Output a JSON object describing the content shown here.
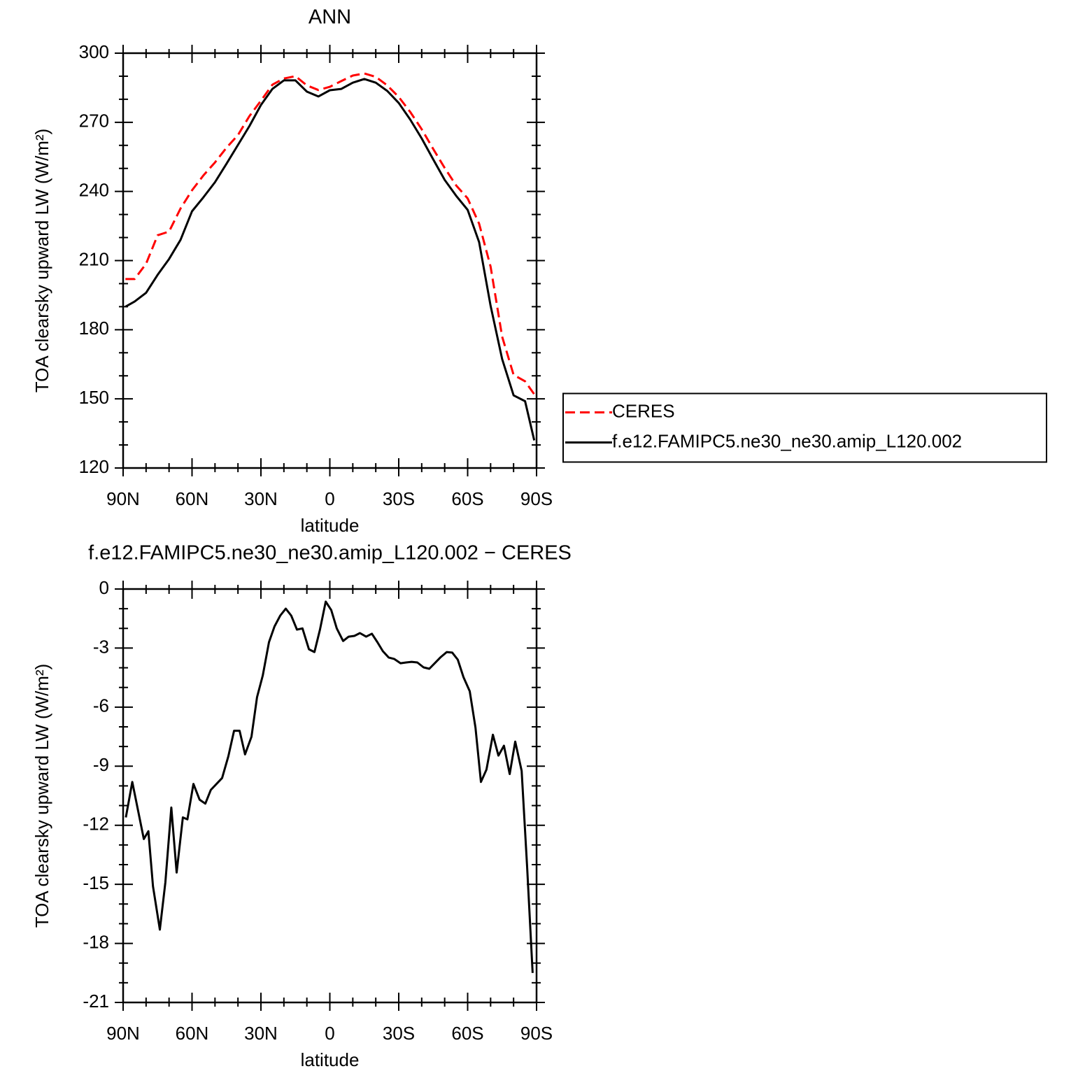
{
  "chart_data": [
    {
      "type": "line",
      "title": "ANN",
      "xlabel": "latitude",
      "ylabel": "TOA clearsky upward LW (W/m²)",
      "x": [
        89,
        85,
        80,
        75,
        70,
        65,
        60,
        55,
        50,
        45,
        40,
        35,
        30,
        25,
        20,
        15,
        10,
        5,
        0,
        -5,
        -10,
        -15,
        -20,
        -25,
        -30,
        -35,
        -40,
        -45,
        -50,
        -55,
        -60,
        -65,
        -70,
        -75,
        -80,
        -85,
        -89
      ],
      "series": [
        {
          "name": "CERES",
          "color": "#ff0000",
          "line_style": "dashed",
          "values": [
            202,
            202,
            208.6,
            221,
            222.6,
            232.6,
            240.5,
            247,
            252.6,
            259,
            264.5,
            272.7,
            279.4,
            286.3,
            289,
            290,
            286,
            284,
            285.4,
            287.9,
            290.3,
            291.2,
            289.7,
            286,
            281,
            274.5,
            267,
            258.4,
            250.2,
            242.6,
            237,
            226,
            207.4,
            177,
            160.4,
            157.6,
            152
          ]
        },
        {
          "name": "f.e12.FAMIPC5.ne30_ne30.amip_L120.002",
          "color": "#000000",
          "line_style": "solid",
          "values": [
            190,
            192.2,
            196,
            203.8,
            210.7,
            219,
            231.4,
            237.5,
            244,
            252,
            260.2,
            268.4,
            277.5,
            284.5,
            288.2,
            288.2,
            283.3,
            281.2,
            283.9,
            284.5,
            287.2,
            288.8,
            287.2,
            283.6,
            278.4,
            271.2,
            263,
            253.9,
            245,
            238.1,
            232,
            218,
            190.4,
            167.3,
            151.5,
            149,
            132
          ]
        }
      ],
      "xlim": [
        90,
        -90
      ],
      "xticks": [
        {
          "value": 90,
          "label": "90N"
        },
        {
          "value": 60,
          "label": "60N"
        },
        {
          "value": 30,
          "label": "30N"
        },
        0,
        {
          "value": -30,
          "label": "30S"
        },
        {
          "value": -60,
          "label": "60S"
        },
        {
          "value": -90,
          "label": "90S"
        }
      ],
      "xminorticks": [
        80,
        70,
        50,
        40,
        20,
        10,
        -10,
        -20,
        -40,
        -50,
        -70,
        -80
      ],
      "ylim": [
        120,
        300
      ],
      "yticks": [
        120,
        150,
        180,
        210,
        240,
        270,
        300
      ],
      "yminorticks": [
        130,
        140,
        160,
        170,
        190,
        200,
        220,
        230,
        250,
        260,
        280,
        290
      ],
      "legend": "right"
    },
    {
      "type": "line",
      "title": "f.e12.FAMIPC5.ne30_ne30.amip_L120.002 − CERES",
      "xlabel": "latitude",
      "ylabel": "TOA clearsky upward LW (W/m²)",
      "x": [
        88.8,
        86,
        81,
        79,
        77,
        74,
        71.6,
        69,
        66.7,
        64,
        62,
        59.4,
        56.7,
        54.2,
        51.8,
        46.9,
        44.2,
        41.7,
        39.3,
        36.9,
        34.1,
        31.7,
        29.2,
        26.5,
        24.1,
        21.6,
        19.2,
        16.8,
        14.3,
        11.9,
        9.1,
        6.7,
        4.3,
        1.8,
        -0.6,
        -3,
        -5.8,
        -8.2,
        -10.7,
        -13.1,
        -15.8,
        -18.3,
        -20.7,
        -23.1,
        -25.6,
        -28,
        -30.8,
        -33.2,
        -35.6,
        -38.1,
        -40.8,
        -43.3,
        -45.7,
        -48.1,
        -50.9,
        -53.3,
        -55.7,
        -58.2,
        -60.9,
        -63.4,
        -65.8,
        -68.2,
        -71,
        -73.4,
        -75.8,
        -78.3,
        -80.7,
        -83.5,
        -85.9,
        -88.3
      ],
      "values": [
        -11.6,
        -9.8,
        -12.7,
        -12.3,
        -15.1,
        -17.3,
        -14.9,
        -11.1,
        -14.4,
        -11.6,
        -11.7,
        -9.9,
        -10.7,
        -10.9,
        -10.2,
        -9.6,
        -8.5,
        -7.2,
        -7.2,
        -8.4,
        -7.5,
        -5.5,
        -4.4,
        -2.7,
        -1.9,
        -1.35,
        -1.0,
        -1.35,
        -2.06,
        -2.0,
        -3.06,
        -3.2,
        -2.06,
        -0.64,
        -1.07,
        -2.0,
        -2.64,
        -2.42,
        -2.38,
        -2.24,
        -2.42,
        -2.27,
        -2.7,
        -3.16,
        -3.48,
        -3.55,
        -3.77,
        -3.73,
        -3.7,
        -3.73,
        -3.98,
        -4.05,
        -3.77,
        -3.48,
        -3.2,
        -3.23,
        -3.59,
        -4.48,
        -5.19,
        -7.04,
        -9.8,
        -9.17,
        -7.4,
        -8.46,
        -7.96,
        -9.4,
        -7.75,
        -9.24,
        -14.1,
        -19.5
      ],
      "color": "#000000",
      "xlim": [
        90,
        -90
      ],
      "xticks": [
        {
          "value": 90,
          "label": "90N"
        },
        {
          "value": 60,
          "label": "60N"
        },
        {
          "value": 30,
          "label": "30N"
        },
        0,
        {
          "value": -30,
          "label": "30S"
        },
        {
          "value": -60,
          "label": "60S"
        },
        {
          "value": -90,
          "label": "90S"
        }
      ],
      "xminorticks": [
        80,
        70,
        50,
        40,
        20,
        10,
        -10,
        -20,
        -40,
        -50,
        -70,
        -80
      ],
      "ylim": [
        -21,
        0
      ],
      "yticks": [
        -21,
        -18,
        -15,
        -12,
        -9,
        -6,
        -3,
        0
      ],
      "yminorticks": [
        -20,
        -19,
        -17,
        -16,
        -14,
        -13,
        -11,
        -10,
        -8,
        -7,
        -5,
        -4,
        -2,
        -1
      ]
    }
  ]
}
